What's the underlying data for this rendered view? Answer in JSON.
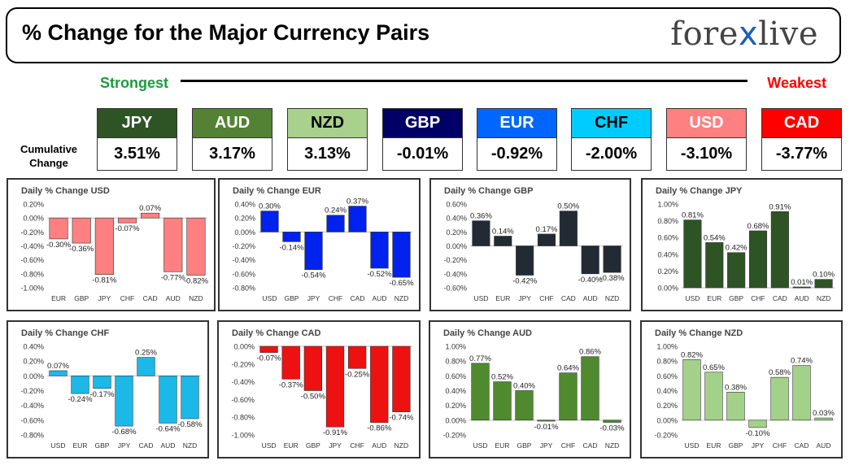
{
  "header": {
    "title": "% Change for the Major Currency Pairs",
    "logo_pre": "fore",
    "logo_x": "x",
    "logo_post": "live"
  },
  "scale": {
    "strongest": "Strongest",
    "weakest": "Weakest",
    "cumulative_label_1": "Cumulative",
    "cumulative_label_2": "Change"
  },
  "currencies": [
    {
      "code": "JPY",
      "value": "3.51%",
      "bg": "#2e5426",
      "fg": "#ffffff"
    },
    {
      "code": "AUD",
      "value": "3.17%",
      "bg": "#548235",
      "fg": "#ffffff"
    },
    {
      "code": "NZD",
      "value": "3.13%",
      "bg": "#a9d18e",
      "fg": "#000000"
    },
    {
      "code": "GBP",
      "value": "-0.01%",
      "bg": "#000066",
      "fg": "#ffffff"
    },
    {
      "code": "EUR",
      "value": "-0.92%",
      "bg": "#0066ff",
      "fg": "#ffffff"
    },
    {
      "code": "CHF",
      "value": "-2.00%",
      "bg": "#00ccff",
      "fg": "#000000"
    },
    {
      "code": "USD",
      "value": "-3.10%",
      "bg": "#ff8080",
      "fg": "#ffffff"
    },
    {
      "code": "CAD",
      "value": "-3.77%",
      "bg": "#ff0000",
      "fg": "#ffffff"
    }
  ],
  "chart_data": [
    {
      "type": "bar",
      "title": "Daily % Change USD",
      "categories": [
        "EUR",
        "GBP",
        "JPY",
        "CHF",
        "CAD",
        "AUD",
        "NZD"
      ],
      "values": [
        -0.3,
        -0.36,
        -0.81,
        -0.07,
        0.07,
        -0.77,
        -0.82
      ],
      "labels": [
        "-0.30%",
        "-0.36%",
        "-0.81%",
        "-0.07%",
        "0.07%",
        "-0.77%",
        "-0.82%"
      ],
      "ylim": [
        -1.0,
        0.2
      ],
      "ticks": [
        0.2,
        0,
        -0.2,
        -0.4,
        -0.6,
        -0.8,
        -1.0
      ],
      "tick_labels": [
        "0.20%",
        "0.00%",
        "-0.20%",
        "-0.40%",
        "-0.60%",
        "-0.80%",
        "-1.00%"
      ],
      "color": "#ff8080",
      "gridlines": false
    },
    {
      "type": "bar",
      "title": "Daily % Change EUR",
      "categories": [
        "USD",
        "GBP",
        "JPY",
        "CHF",
        "CAD",
        "AUD",
        "NZD"
      ],
      "values": [
        0.3,
        -0.14,
        -0.54,
        0.24,
        0.37,
        -0.52,
        -0.65
      ],
      "labels": [
        "0.30%",
        "-0.14%",
        "-0.54%",
        "0.24%",
        "0.37%",
        "-0.52%",
        "-0.65%"
      ],
      "ylim": [
        -0.8,
        0.4
      ],
      "ticks": [
        0.4,
        0.2,
        0,
        -0.2,
        -0.4,
        -0.6,
        -0.8
      ],
      "tick_labels": [
        "0.40%",
        "0.20%",
        "0.00%",
        "-0.20%",
        "-0.40%",
        "-0.60%",
        "-0.80%"
      ],
      "color": "#0022ee",
      "gridlines": false
    },
    {
      "type": "bar",
      "title": "Daily % Change GBP",
      "categories": [
        "USD",
        "EUR",
        "JPY",
        "CHF",
        "CAD",
        "AUD",
        "NZD"
      ],
      "values": [
        0.36,
        0.14,
        -0.42,
        0.17,
        0.5,
        -0.4,
        -0.38
      ],
      "labels": [
        "0.36%",
        "0.14%",
        "-0.42%",
        "0.17%",
        "0.50%",
        "-0.40%",
        "-0.38%"
      ],
      "ylim": [
        -0.6,
        0.6
      ],
      "ticks": [
        0.6,
        0.4,
        0.2,
        0,
        -0.2,
        -0.4,
        -0.6
      ],
      "tick_labels": [
        "0.60%",
        "0.40%",
        "0.20%",
        "0.00%",
        "-0.20%",
        "-0.40%",
        "-0.60%"
      ],
      "color": "#222a33",
      "gridlines": false
    },
    {
      "type": "bar",
      "title": "Daily % Change JPY",
      "categories": [
        "USD",
        "EUR",
        "GBP",
        "CHF",
        "CAD",
        "AUD",
        "NZD"
      ],
      "values": [
        0.81,
        0.54,
        0.42,
        0.68,
        0.91,
        0.01,
        0.1
      ],
      "labels": [
        "0.81%",
        "0.54%",
        "0.42%",
        "0.68%",
        "0.91%",
        "0.01%",
        "0.10%"
      ],
      "ylim": [
        0,
        1.0
      ],
      "ticks": [
        1.0,
        0.8,
        0.6,
        0.4,
        0.2,
        0
      ],
      "tick_labels": [
        "1.00%",
        "0.80%",
        "0.60%",
        "0.40%",
        "0.20%",
        "0.00%"
      ],
      "color": "#2e5426",
      "gridlines": false
    },
    {
      "type": "bar",
      "title": "Daily % Change CHF",
      "categories": [
        "USD",
        "EUR",
        "GBP",
        "JPY",
        "CAD",
        "AUD",
        "NZD"
      ],
      "values": [
        0.07,
        -0.24,
        -0.17,
        -0.68,
        0.25,
        -0.64,
        -0.58
      ],
      "labels": [
        "0.07%",
        "-0.24%",
        "-0.17%",
        "-0.68%",
        "0.25%",
        "-0.64%",
        "-0.58%"
      ],
      "ylim": [
        -0.8,
        0.4
      ],
      "ticks": [
        0.4,
        0.2,
        0,
        -0.2,
        -0.4,
        -0.6,
        -0.8
      ],
      "tick_labels": [
        "0.40%",
        "0.20%",
        "0.00%",
        "-0.20%",
        "-0.40%",
        "-0.60%",
        "-0.80%"
      ],
      "color": "#1cb8e8",
      "gridlines": false
    },
    {
      "type": "bar",
      "title": "Daily % Change CAD",
      "categories": [
        "USD",
        "EUR",
        "GBP",
        "JPY",
        "CHF",
        "AUD",
        "NZD"
      ],
      "values": [
        -0.07,
        -0.37,
        -0.5,
        -0.91,
        -0.25,
        -0.86,
        -0.74
      ],
      "labels": [
        "-0.07%",
        "-0.37%",
        "-0.50%",
        "-0.91%",
        "-0.25%",
        "-0.86%",
        "-0.74%"
      ],
      "ylim": [
        -1.0,
        0
      ],
      "ticks": [
        0,
        -0.2,
        -0.4,
        -0.6,
        -0.8,
        -1.0
      ],
      "tick_labels": [
        "0.00%",
        "-0.20%",
        "-0.40%",
        "-0.60%",
        "-0.80%",
        "-1.00%"
      ],
      "color": "#ee1111",
      "gridlines": false
    },
    {
      "type": "bar",
      "title": "Daily % Change AUD",
      "categories": [
        "USD",
        "EUR",
        "GBP",
        "JPY",
        "CHF",
        "CAD",
        "NZD"
      ],
      "values": [
        0.77,
        0.52,
        0.4,
        -0.01,
        0.64,
        0.86,
        -0.03
      ],
      "labels": [
        "0.77%",
        "0.52%",
        "0.40%",
        "-0.01%",
        "0.64%",
        "0.86%",
        "-0.03%"
      ],
      "ylim": [
        -0.2,
        1.0
      ],
      "ticks": [
        1.0,
        0.8,
        0.6,
        0.4,
        0.2,
        0,
        -0.2
      ],
      "tick_labels": [
        "1.00%",
        "0.80%",
        "0.60%",
        "0.40%",
        "0.20%",
        "0.00%",
        "-0.20%"
      ],
      "color": "#4f8a2e",
      "gridlines": false
    },
    {
      "type": "bar",
      "title": "Daily % Change NZD",
      "categories": [
        "USD",
        "EUR",
        "GBP",
        "JPY",
        "CHF",
        "CAD",
        "AUD"
      ],
      "values": [
        0.82,
        0.65,
        0.38,
        -0.1,
        0.58,
        0.74,
        0.03
      ],
      "labels": [
        "0.82%",
        "0.65%",
        "0.38%",
        "-0.10%",
        "0.58%",
        "0.74%",
        "0.03%"
      ],
      "ylim": [
        -0.2,
        1.0
      ],
      "ticks": [
        1.0,
        0.8,
        0.6,
        0.4,
        0.2,
        0,
        -0.2
      ],
      "tick_labels": [
        "1.00%",
        "0.80%",
        "0.60%",
        "0.40%",
        "0.20%",
        "0.00%",
        "-0.20%"
      ],
      "color": "#a4d18a",
      "gridlines": false
    }
  ]
}
